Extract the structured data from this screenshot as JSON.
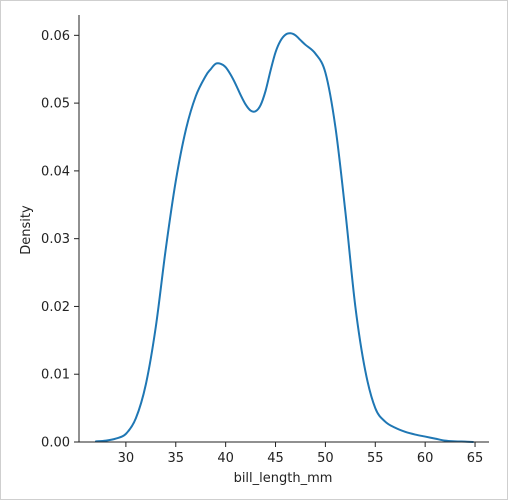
{
  "chart_data": {
    "type": "line",
    "title": "",
    "xlabel": "bill_length_mm",
    "ylabel": "Density",
    "xlim": [
      25.3,
      66.4
    ],
    "ylim": [
      0,
      0.063
    ],
    "xticks": [
      30,
      35,
      40,
      45,
      50,
      55,
      60,
      65
    ],
    "xtick_labels": [
      "30",
      "35",
      "40",
      "45",
      "50",
      "55",
      "60",
      "65"
    ],
    "yticks": [
      0.0,
      0.01,
      0.02,
      0.03,
      0.04,
      0.05,
      0.06
    ],
    "ytick_labels": [
      "0.00",
      "0.01",
      "0.02",
      "0.03",
      "0.04",
      "0.05",
      "0.06"
    ],
    "grid": false,
    "color": "#1f77b4",
    "series": [
      {
        "x": [
          27,
          28,
          29,
          30,
          31,
          32,
          33,
          34,
          35,
          36,
          37,
          38,
          38.5,
          39,
          39.5,
          40,
          40.5,
          41,
          41.5,
          42,
          42.5,
          43,
          43.5,
          44,
          44.5,
          45,
          45.5,
          46,
          46.5,
          47,
          47.5,
          48,
          49,
          50,
          51,
          52,
          53,
          54,
          55,
          56,
          57,
          58,
          59,
          60,
          61,
          62,
          63,
          64,
          64.8
        ],
        "y": [
          0.0001,
          0.0002,
          0.0005,
          0.0012,
          0.0035,
          0.0085,
          0.017,
          0.0285,
          0.0385,
          0.046,
          0.051,
          0.054,
          0.055,
          0.0558,
          0.0558,
          0.0553,
          0.0542,
          0.0528,
          0.0512,
          0.0498,
          0.0489,
          0.0488,
          0.0497,
          0.0518,
          0.0548,
          0.0575,
          0.0592,
          0.0601,
          0.0603,
          0.06,
          0.0593,
          0.0586,
          0.0573,
          0.0545,
          0.0465,
          0.034,
          0.02,
          0.0105,
          0.005,
          0.003,
          0.0021,
          0.0015,
          0.0011,
          0.0008,
          0.0005,
          0.0002,
          0.0001,
          5e-05,
          0.0
        ]
      }
    ]
  }
}
